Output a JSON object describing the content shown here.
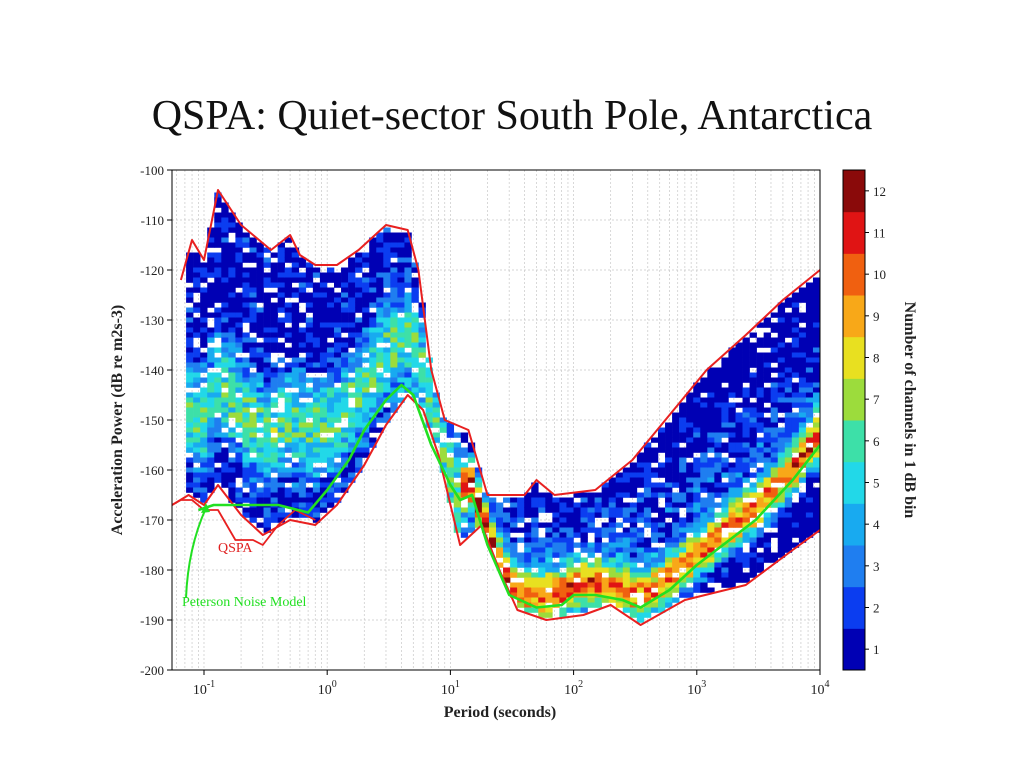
{
  "slide": {
    "title": "QSPA: Quiet-sector South Pole, Antarctica"
  },
  "chart_data": {
    "type": "heatmap",
    "title": "QSPA: Quiet-sector South Pole, Antarctica",
    "xlabel": "Period (seconds)",
    "ylabel": "Acceleration Power (dB re m2s-3)",
    "x_scale": "log",
    "xlim": [
      0.055,
      10000
    ],
    "ylim": [
      -200,
      -100
    ],
    "x_ticks": [
      {
        "base": "10",
        "exp": "-1"
      },
      {
        "base": "10",
        "exp": "0"
      },
      {
        "base": "10",
        "exp": "1"
      },
      {
        "base": "10",
        "exp": "2"
      },
      {
        "base": "10",
        "exp": "3"
      },
      {
        "base": "10",
        "exp": "4"
      }
    ],
    "y_ticks": [
      "-100",
      "-110",
      "-120",
      "-130",
      "-140",
      "-150",
      "-160",
      "-170",
      "-180",
      "-190",
      "-200"
    ],
    "grid": true,
    "colorbar": {
      "label": "Number of channels in 1 dB bin",
      "ticks": [
        "1",
        "2",
        "3",
        "4",
        "5",
        "6",
        "7",
        "8",
        "9",
        "10",
        "11",
        "12"
      ],
      "colors": [
        "#0000b4",
        "#0b3df0",
        "#1f7ef0",
        "#18aaf0",
        "#22d8e8",
        "#3de0a8",
        "#9cdc3c",
        "#e8e020",
        "#f8a818",
        "#f06010",
        "#e01414",
        "#8a0a0a"
      ]
    },
    "annotations": [
      {
        "text": "QSPA",
        "color": "#e02020"
      },
      {
        "text": "Peterson Noise Model",
        "color": "#22e022"
      }
    ],
    "curves": {
      "qspa_upper": [
        [
          0.065,
          -122
        ],
        [
          0.08,
          -114
        ],
        [
          0.1,
          -118
        ],
        [
          0.13,
          -104
        ],
        [
          0.2,
          -111
        ],
        [
          0.35,
          -116
        ],
        [
          0.5,
          -113
        ],
        [
          0.6,
          -117
        ],
        [
          0.8,
          -119
        ],
        [
          1.2,
          -119
        ],
        [
          1.8,
          -116
        ],
        [
          3,
          -111
        ],
        [
          4.5,
          -112
        ],
        [
          5.5,
          -120
        ],
        [
          7,
          -140
        ],
        [
          9,
          -150
        ],
        [
          14,
          -152
        ],
        [
          20,
          -165
        ],
        [
          40,
          -165
        ],
        [
          50,
          -162
        ],
        [
          70,
          -165
        ],
        [
          150,
          -164
        ],
        [
          300,
          -158
        ],
        [
          600,
          -149
        ],
        [
          1200,
          -140
        ],
        [
          2500,
          -133
        ],
        [
          5000,
          -126
        ],
        [
          10000,
          -120
        ]
      ],
      "qspa_lower": [
        [
          0.055,
          -167
        ],
        [
          0.075,
          -165
        ],
        [
          0.1,
          -167
        ],
        [
          0.13,
          -163
        ],
        [
          0.2,
          -169
        ],
        [
          0.3,
          -173
        ],
        [
          0.5,
          -170
        ],
        [
          0.8,
          -171
        ],
        [
          1.2,
          -167
        ],
        [
          2,
          -159
        ],
        [
          3,
          -151
        ],
        [
          4.5,
          -145
        ],
        [
          6,
          -148
        ],
        [
          8,
          -157
        ],
        [
          12,
          -175
        ],
        [
          18,
          -171
        ],
        [
          25,
          -180
        ],
        [
          35,
          -188
        ],
        [
          60,
          -190
        ],
        [
          120,
          -189
        ],
        [
          200,
          -187
        ],
        [
          350,
          -191
        ],
        [
          800,
          -186
        ],
        [
          2500,
          -183
        ],
        [
          6000,
          -176
        ],
        [
          10000,
          -172
        ]
      ],
      "qspa_low_extension": [
        [
          0.055,
          -167
        ],
        [
          0.065,
          -166
        ],
        [
          0.08,
          -166
        ],
        [
          0.1,
          -168
        ],
        [
          0.13,
          -168
        ],
        [
          0.18,
          -174
        ],
        [
          0.25,
          -174
        ],
        [
          0.3,
          -175
        ],
        [
          0.4,
          -171
        ],
        [
          0.55,
          -168
        ],
        [
          0.8,
          -170
        ]
      ],
      "peterson_nlnm": [
        [
          0.09,
          -168
        ],
        [
          0.12,
          -167
        ],
        [
          0.2,
          -167
        ],
        [
          0.4,
          -167
        ],
        [
          0.7,
          -168.5
        ],
        [
          1,
          -164
        ],
        [
          1.5,
          -158
        ],
        [
          2,
          -152
        ],
        [
          3,
          -146
        ],
        [
          4,
          -143
        ],
        [
          5,
          -145
        ],
        [
          7,
          -155
        ],
        [
          10,
          -163
        ],
        [
          12,
          -166
        ],
        [
          15,
          -165
        ],
        [
          20,
          -175
        ],
        [
          30,
          -185
        ],
        [
          50,
          -187.5
        ],
        [
          80,
          -187
        ],
        [
          100,
          -185
        ],
        [
          150,
          -185
        ],
        [
          250,
          -186
        ],
        [
          350,
          -187.5
        ],
        [
          600,
          -184
        ],
        [
          1000,
          -179
        ],
        [
          3000,
          -170
        ],
        [
          6000,
          -162
        ],
        [
          10000,
          -155
        ]
      ]
    }
  }
}
